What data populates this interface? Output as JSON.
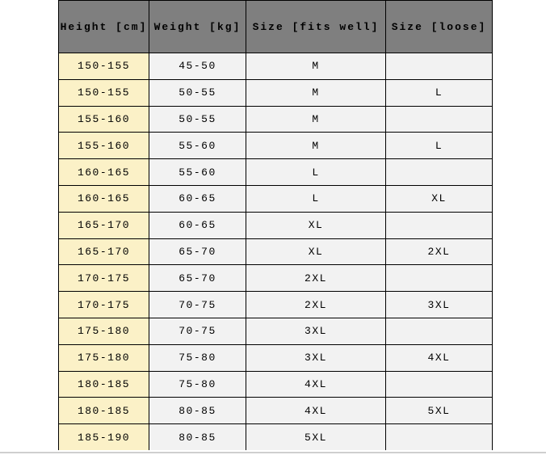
{
  "chart_data": {
    "type": "table",
    "columns": [
      "Height [cm]",
      "Weight [kg]",
      "Size [fits well]",
      "Size [loose]"
    ],
    "rows": [
      [
        "150-155",
        "45-50",
        "M",
        ""
      ],
      [
        "150-155",
        "50-55",
        "M",
        "L"
      ],
      [
        "155-160",
        "50-55",
        "M",
        ""
      ],
      [
        "155-160",
        "55-60",
        "M",
        "L"
      ],
      [
        "160-165",
        "55-60",
        "L",
        ""
      ],
      [
        "160-165",
        "60-65",
        "L",
        "XL"
      ],
      [
        "165-170",
        "60-65",
        "XL",
        ""
      ],
      [
        "165-170",
        "65-70",
        "XL",
        "2XL"
      ],
      [
        "170-175",
        "65-70",
        "2XL",
        ""
      ],
      [
        "170-175",
        "70-75",
        "2XL",
        "3XL"
      ],
      [
        "175-180",
        "70-75",
        "3XL",
        ""
      ],
      [
        "175-180",
        "75-80",
        "3XL",
        "4XL"
      ],
      [
        "180-185",
        "75-80",
        "4XL",
        ""
      ],
      [
        "180-185",
        "80-85",
        "4XL",
        "5XL"
      ],
      [
        "185-190",
        "80-85",
        "5XL",
        ""
      ]
    ],
    "colors": {
      "header_bg": "#7f7f7f",
      "header_text": "#000000",
      "height_col_bg": "#fbf1c7",
      "cell_bg": "#f2f2f2",
      "border": "#000000",
      "page_bg": "#ffffff",
      "bottom_rule": "#cfcfcf"
    },
    "title": "",
    "legend": []
  }
}
